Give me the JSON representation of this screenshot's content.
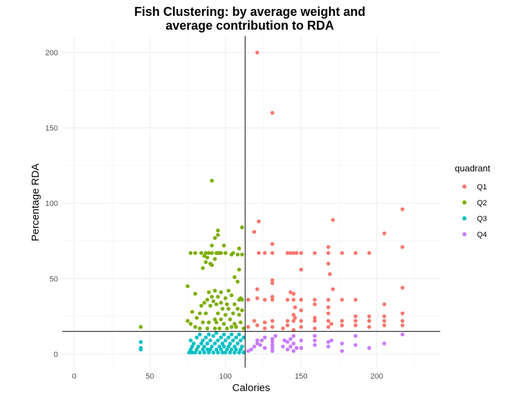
{
  "chart_data": {
    "type": "scatter",
    "title": [
      "Fish Clustering: by average weight and",
      "average contribution to RDA"
    ],
    "xlabel": "Calories",
    "ylabel": "Percentage RDA",
    "xlim": [
      -8,
      242
    ],
    "ylim": [
      -9,
      211
    ],
    "x_ticks": [
      0,
      50,
      100,
      150,
      200
    ],
    "y_ticks": [
      0,
      50,
      100,
      150,
      200
    ],
    "grid": true,
    "reference_lines": {
      "vertical_x": 113,
      "horizontal_y": 15
    },
    "legend": {
      "title": "quadrant",
      "position": "right"
    },
    "series": [
      {
        "name": "Q1",
        "color": "#F8766D",
        "points": [
          [
            121,
            200
          ],
          [
            131,
            160
          ],
          [
            217,
            96
          ],
          [
            122,
            88
          ],
          [
            171,
            89
          ],
          [
            205,
            80
          ],
          [
            119,
            81
          ],
          [
            217,
            71
          ],
          [
            122,
            67
          ],
          [
            126,
            67
          ],
          [
            131,
            67
          ],
          [
            131,
            73
          ],
          [
            141,
            67
          ],
          [
            143,
            67
          ],
          [
            145,
            67
          ],
          [
            147,
            67
          ],
          [
            150,
            67
          ],
          [
            159,
            67
          ],
          [
            168,
            67
          ],
          [
            168,
            71
          ],
          [
            177,
            67
          ],
          [
            186,
            67
          ],
          [
            195,
            67
          ],
          [
            150,
            56
          ],
          [
            168,
            60
          ],
          [
            169,
            53
          ],
          [
            121,
            43
          ],
          [
            131,
            49
          ],
          [
            131,
            47
          ],
          [
            143,
            41
          ],
          [
            145,
            40
          ],
          [
            171,
            43
          ],
          [
            217,
            44
          ],
          [
            115,
            36
          ],
          [
            121,
            37
          ],
          [
            126,
            36
          ],
          [
            131,
            36
          ],
          [
            131,
            38
          ],
          [
            141,
            36
          ],
          [
            145,
            36
          ],
          [
            150,
            36
          ],
          [
            159,
            36
          ],
          [
            159,
            33
          ],
          [
            168,
            36
          ],
          [
            177,
            36
          ],
          [
            186,
            36
          ],
          [
            146,
            31
          ],
          [
            150,
            29
          ],
          [
            168,
            31
          ],
          [
            205,
            33
          ],
          [
            217,
            27
          ],
          [
            145,
            26
          ],
          [
            146,
            24
          ],
          [
            159,
            24
          ],
          [
            168,
            27
          ],
          [
            186,
            25
          ],
          [
            195,
            25
          ],
          [
            205,
            25
          ],
          [
            119,
            22
          ],
          [
            126,
            21
          ],
          [
            131,
            22
          ],
          [
            141,
            22
          ],
          [
            145,
            22
          ],
          [
            150,
            22
          ],
          [
            159,
            22
          ],
          [
            168,
            22
          ],
          [
            177,
            22
          ],
          [
            186,
            22
          ],
          [
            195,
            22
          ],
          [
            205,
            22
          ],
          [
            217,
            22
          ],
          [
            115,
            18
          ],
          [
            121,
            19
          ],
          [
            126,
            17
          ],
          [
            131,
            18
          ],
          [
            141,
            19
          ],
          [
            145,
            16
          ],
          [
            150,
            18
          ],
          [
            159,
            17
          ],
          [
            168,
            18
          ],
          [
            170,
            20
          ],
          [
            177,
            19
          ],
          [
            186,
            19
          ],
          [
            195,
            18
          ],
          [
            205,
            19
          ],
          [
            217,
            19
          ],
          [
            138,
            17
          ]
        ]
      },
      {
        "name": "Q2",
        "color": "#7CAE00",
        "points": [
          [
            91,
            115
          ],
          [
            111,
            84
          ],
          [
            95,
            82
          ],
          [
            95,
            79
          ],
          [
            93,
            77
          ],
          [
            99,
            72
          ],
          [
            91,
            72
          ],
          [
            97,
            67
          ],
          [
            95,
            67
          ],
          [
            105,
            67
          ],
          [
            109,
            70
          ],
          [
            77,
            67
          ],
          [
            80,
            67
          ],
          [
            84,
            67
          ],
          [
            87,
            67
          ],
          [
            89,
            67
          ],
          [
            91,
            67
          ],
          [
            94,
            67
          ],
          [
            96,
            67
          ],
          [
            100,
            67
          ],
          [
            104,
            66
          ],
          [
            108,
            66
          ],
          [
            111,
            66
          ],
          [
            86,
            65
          ],
          [
            88,
            64
          ],
          [
            93,
            63
          ],
          [
            87,
            61
          ],
          [
            90,
            60
          ],
          [
            85,
            57
          ],
          [
            91,
            59
          ],
          [
            109,
            56
          ],
          [
            106,
            51
          ],
          [
            108,
            48
          ],
          [
            75,
            45
          ],
          [
            93,
            42
          ],
          [
            102,
            42
          ],
          [
            89,
            41
          ],
          [
            97,
            41
          ],
          [
            80,
            40
          ],
          [
            91,
            38
          ],
          [
            95,
            38
          ],
          [
            100,
            37
          ],
          [
            104,
            39
          ],
          [
            110,
            37
          ],
          [
            86,
            34
          ],
          [
            88,
            36
          ],
          [
            92,
            35
          ],
          [
            94,
            33
          ],
          [
            97,
            34
          ],
          [
            101,
            33
          ],
          [
            106,
            33
          ],
          [
            84,
            32
          ],
          [
            90,
            32
          ],
          [
            98,
            30
          ],
          [
            102,
            30
          ],
          [
            108,
            30
          ],
          [
            111,
            29
          ],
          [
            78,
            28
          ],
          [
            83,
            27
          ],
          [
            87,
            27
          ],
          [
            95,
            27
          ],
          [
            100,
            26
          ],
          [
            105,
            27
          ],
          [
            109,
            26
          ],
          [
            81,
            24
          ],
          [
            93,
            23
          ],
          [
            97,
            23
          ],
          [
            103,
            23
          ],
          [
            75,
            22
          ],
          [
            85,
            21
          ],
          [
            89,
            21
          ],
          [
            94,
            21
          ],
          [
            99,
            20
          ],
          [
            106,
            20
          ],
          [
            110,
            21
          ],
          [
            77,
            20
          ],
          [
            80,
            18
          ],
          [
            83,
            17
          ],
          [
            88,
            17
          ],
          [
            93,
            17
          ],
          [
            96,
            17
          ],
          [
            101,
            17
          ],
          [
            104,
            18
          ],
          [
            107,
            18
          ],
          [
            112,
            17
          ],
          [
            44,
            18
          ],
          [
            109,
            36
          ],
          [
            111,
            36
          ]
        ]
      },
      {
        "name": "Q3",
        "color": "#00BFC4",
        "points": [
          [
            44,
            8
          ],
          [
            44,
            4
          ],
          [
            44,
            3
          ],
          [
            76,
            1
          ],
          [
            78,
            1
          ],
          [
            80,
            1
          ],
          [
            83,
            1
          ],
          [
            86,
            1
          ],
          [
            89,
            1
          ],
          [
            92,
            1
          ],
          [
            95,
            1
          ],
          [
            98,
            1
          ],
          [
            100,
            1
          ],
          [
            103,
            1
          ],
          [
            106,
            1
          ],
          [
            109,
            1
          ],
          [
            112,
            1
          ],
          [
            77,
            3
          ],
          [
            81,
            3
          ],
          [
            85,
            3
          ],
          [
            88,
            3
          ],
          [
            90,
            3
          ],
          [
            94,
            3
          ],
          [
            97,
            3
          ],
          [
            101,
            3
          ],
          [
            104,
            3
          ],
          [
            107,
            3
          ],
          [
            110,
            3
          ],
          [
            78,
            5
          ],
          [
            82,
            5
          ],
          [
            86,
            5
          ],
          [
            91,
            5
          ],
          [
            96,
            5
          ],
          [
            99,
            5
          ],
          [
            102,
            5
          ],
          [
            106,
            5
          ],
          [
            111,
            5
          ],
          [
            79,
            7
          ],
          [
            84,
            7
          ],
          [
            88,
            7
          ],
          [
            93,
            7
          ],
          [
            98,
            7
          ],
          [
            103,
            7
          ],
          [
            108,
            7
          ],
          [
            77,
            9
          ],
          [
            85,
            9
          ],
          [
            90,
            9
          ],
          [
            95,
            9
          ],
          [
            100,
            9
          ],
          [
            105,
            9
          ],
          [
            110,
            9
          ],
          [
            81,
            11
          ],
          [
            87,
            11
          ],
          [
            92,
            12
          ],
          [
            97,
            11
          ],
          [
            102,
            11
          ],
          [
            107,
            11
          ],
          [
            112,
            11
          ],
          [
            83,
            13
          ],
          [
            89,
            13
          ],
          [
            94,
            14
          ],
          [
            99,
            13
          ],
          [
            104,
            13
          ],
          [
            109,
            13
          ]
        ]
      },
      {
        "name": "Q4",
        "color": "#C77CFF",
        "points": [
          [
            115,
            2
          ],
          [
            117,
            3
          ],
          [
            119,
            5
          ],
          [
            121,
            7
          ],
          [
            124,
            9
          ],
          [
            126,
            11
          ],
          [
            126,
            4
          ],
          [
            131,
            2
          ],
          [
            131,
            4
          ],
          [
            131,
            6
          ],
          [
            131,
            8
          ],
          [
            131,
            10
          ],
          [
            133,
            12
          ],
          [
            138,
            5
          ],
          [
            141,
            3
          ],
          [
            141,
            8
          ],
          [
            143,
            5
          ],
          [
            143,
            10
          ],
          [
            145,
            2
          ],
          [
            145,
            7
          ],
          [
            145,
            12
          ],
          [
            147,
            4
          ],
          [
            150,
            4
          ],
          [
            150,
            9
          ],
          [
            159,
            6
          ],
          [
            159,
            9
          ],
          [
            168,
            5
          ],
          [
            168,
            8
          ],
          [
            170,
            9
          ],
          [
            177,
            2
          ],
          [
            177,
            7
          ],
          [
            186,
            6
          ],
          [
            186,
            12
          ],
          [
            195,
            4
          ],
          [
            205,
            7
          ],
          [
            217,
            13
          ],
          [
            121,
            9
          ],
          [
            123,
            6
          ],
          [
            139,
            9
          ],
          [
            159,
            12
          ]
        ]
      }
    ]
  }
}
